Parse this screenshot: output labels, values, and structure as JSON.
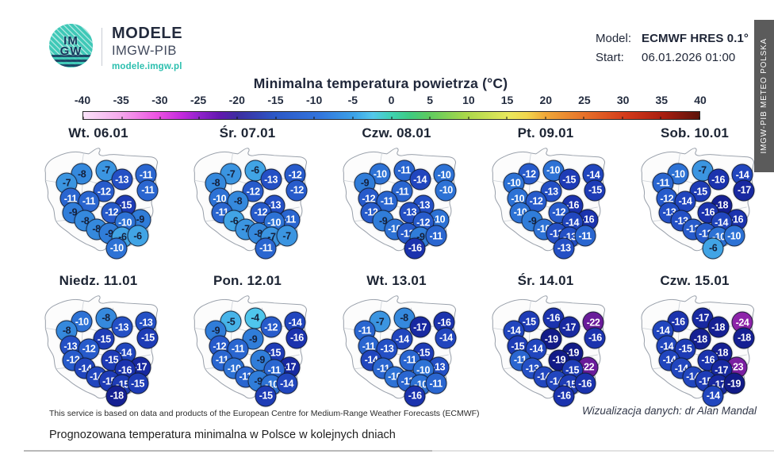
{
  "header": {
    "logo_text_top": "IM",
    "logo_text_bottom": "GW",
    "brand": "MODELE",
    "brand_sub": "IMGW-PIB",
    "brand_url": "modele.imgw.pl",
    "model_label": "Model:",
    "model_value": "ECMWF HRES 0.1°",
    "start_label": "Start:",
    "start_value": "06.01.2026 01:00"
  },
  "side_banner": "IMGW-PIB METEO POLSKA",
  "chart_data": {
    "type": "scatter",
    "title": "Minimalna temperatura powietrza (°C)",
    "colorbar": {
      "min": -40,
      "max": 40,
      "ticks": [
        -40,
        -35,
        -30,
        -25,
        -20,
        -15,
        -10,
        -5,
        0,
        5,
        10,
        15,
        20,
        25,
        30,
        35,
        40
      ],
      "gradient": [
        [
          0,
          "#fbe3f9"
        ],
        [
          0.06,
          "#f5a9ec"
        ],
        [
          0.12,
          "#ec52e2"
        ],
        [
          0.16,
          "#c32add"
        ],
        [
          0.19,
          "#8e22ca"
        ],
        [
          0.22,
          "#6517b0"
        ],
        [
          0.25,
          "#3d2da0"
        ],
        [
          0.29,
          "#3248b8"
        ],
        [
          0.31,
          "#2c58c6"
        ],
        [
          0.38,
          "#3273dc"
        ],
        [
          0.44,
          "#3ba2e8"
        ],
        [
          0.47,
          "#54c8ec"
        ],
        [
          0.5,
          "#3fd2b2"
        ],
        [
          0.53,
          "#3ecb82"
        ],
        [
          0.56,
          "#5ccb60"
        ],
        [
          0.62,
          "#a8d84a"
        ],
        [
          0.69,
          "#e9e85c"
        ],
        [
          0.72,
          "#f2d64d"
        ],
        [
          0.75,
          "#f0a838"
        ],
        [
          0.81,
          "#e8742a"
        ],
        [
          0.88,
          "#d43a1a"
        ],
        [
          0.94,
          "#aa1e10"
        ],
        [
          1,
          "#5d130a"
        ]
      ]
    },
    "station_positions": [
      [
        37,
        25
      ],
      [
        56,
        22
      ],
      [
        25,
        33
      ],
      [
        68.5,
        30
      ],
      [
        87.5,
        26
      ],
      [
        89,
        39
      ],
      [
        54.5,
        40
      ],
      [
        28,
        46
      ],
      [
        42.5,
        48.5
      ],
      [
        71,
        52
      ],
      [
        60.5,
        58
      ],
      [
        30,
        58
      ],
      [
        83,
        64
      ],
      [
        39.5,
        65
      ],
      [
        71,
        66.5
      ],
      [
        48.5,
        72
      ],
      [
        58.5,
        76
      ],
      [
        69,
        79
      ],
      [
        81,
        78
      ],
      [
        64.5,
        88.5
      ]
    ],
    "days": [
      {
        "label": "Wt. 06.01",
        "values": [
          -8,
          -7,
          -7,
          -13,
          -11,
          -11,
          -12,
          -11,
          -11,
          -15,
          -12,
          -9,
          -9,
          -8,
          -10,
          -8,
          -9,
          -6,
          -6,
          -10
        ]
      },
      {
        "label": "Śr. 07.01",
        "values": [
          -7,
          -6,
          -8,
          -13,
          -12,
          -12,
          -12,
          -10,
          -8,
          -13,
          -12,
          -11,
          -11,
          -6,
          -10,
          -7,
          -8,
          -7,
          -7,
          -11
        ]
      },
      {
        "label": "Czw. 08.01",
        "values": [
          -10,
          -11,
          -9,
          -14,
          -10,
          -10,
          -11,
          -12,
          -11,
          -13,
          -13,
          -12,
          -10,
          -9,
          -12,
          -10,
          -12,
          -9,
          -11,
          -16
        ]
      },
      {
        "label": "Pt. 09.01",
        "values": [
          -12,
          -10,
          -10,
          -15,
          -14,
          -15,
          -13,
          -10,
          -12,
          -16,
          -12,
          -10,
          -16,
          -9,
          -14,
          -10,
          -13,
          -13,
          -11,
          -13
        ]
      },
      {
        "label": "Sob. 10.01",
        "values": [
          -10,
          -7,
          -11,
          -16,
          -14,
          -17,
          -15,
          -12,
          -14,
          -18,
          -16,
          -13,
          -16,
          -13,
          -14,
          -12,
          -12,
          -10,
          -10,
          -6
        ]
      },
      {
        "label": "Niedz. 11.01",
        "values": [
          -10,
          -8,
          -8,
          -13,
          -13,
          -15,
          -15,
          -13,
          -12,
          -14,
          -15,
          -12,
          -17,
          -14,
          -16,
          -14,
          -15,
          -15,
          -15,
          -18
        ]
      },
      {
        "label": "Pon. 12.01",
        "values": [
          -5,
          -4,
          -9,
          -12,
          -14,
          -16,
          -9,
          -12,
          -11,
          -15,
          -9,
          -11,
          -17,
          -10,
          -11,
          -11,
          -9,
          -10,
          -14,
          -15
        ]
      },
      {
        "label": "Wt. 13.01",
        "values": [
          -7,
          -8,
          -11,
          -17,
          -16,
          -14,
          -14,
          -11,
          -13,
          -15,
          -11,
          -14,
          -13,
          -11,
          -10,
          -10,
          -11,
          -10,
          -11,
          -16
        ]
      },
      {
        "label": "Śr. 14.01",
        "values": [
          -15,
          -16,
          -14,
          -17,
          -22,
          -16,
          -19,
          -15,
          -14,
          -19,
          -19,
          -11,
          -22,
          -13,
          -15,
          -14,
          -14,
          -15,
          -16,
          -16
        ]
      },
      {
        "label": "Czw. 15.01",
        "values": [
          -16,
          -17,
          -14,
          -18,
          -24,
          -18,
          -18,
          -14,
          -15,
          -18,
          -16,
          -14,
          -23,
          -14,
          -17,
          -14,
          -15,
          -17,
          -19,
          -14
        ]
      }
    ],
    "value_colors": {
      "-4": "#4fc6ec",
      "-5": "#47b4e9",
      "-6": "#41a4e5",
      "-7": "#3b95e1",
      "-8": "#3589dd",
      "-9": "#307dd9",
      "-10": "#2d72d5",
      "-11": "#2a66d0",
      "-12": "#275bcb",
      "-13": "#2450c5",
      "-14": "#2146be",
      "-15": "#1e3cb6",
      "-16": "#1b33ae",
      "-17": "#1829a1",
      "-18": "#152093",
      "-19": "#121b88",
      "-22": "#6a1b9a",
      "-23": "#7b1fa2",
      "-24": "#8e24aa"
    },
    "dark_text_threshold": -9
  },
  "footer": {
    "attribution": "This service is based on data and products of the European Centre for Medium-Range Weather Forecasts (ECMWF)",
    "credit": "Wizualizacja danych: dr Alan Mandal",
    "caption": "Prognozowana temperatura minimalna w Polsce w kolejnych dniach"
  },
  "colors": {
    "accent_teal": "#2bbfae",
    "dark_navy": "#222b3d",
    "banner_gray": "#5b5b5b"
  }
}
